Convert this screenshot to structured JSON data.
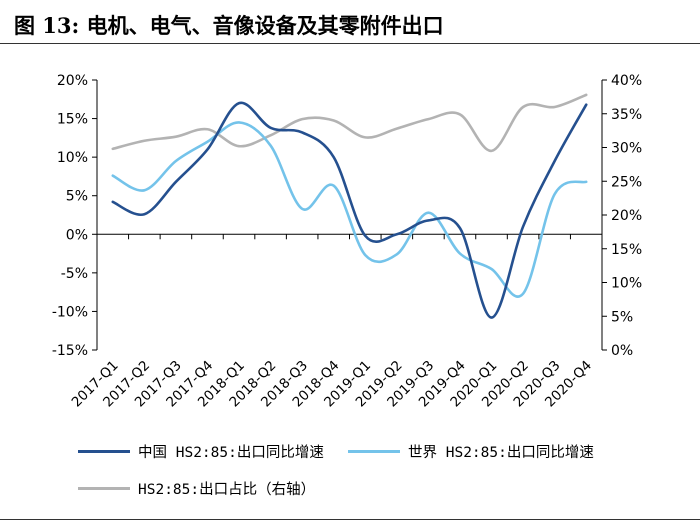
{
  "figure": {
    "title": "图 13:  电机、电气、音像设备及其零附件出口"
  },
  "colors": {
    "china": "#25508f",
    "world": "#74c3ea",
    "share": "#b3b3b3",
    "axis": "#000000"
  },
  "chart_data": {
    "type": "line",
    "title": "",
    "categories": [
      "2017-Q1",
      "2017-Q2",
      "2017-Q3",
      "2017-Q4",
      "2018-Q1",
      "2018-Q2",
      "2018-Q3",
      "2018-Q4",
      "2019-Q1",
      "2019-Q2",
      "2019-Q3",
      "2019-Q4",
      "2020-Q1",
      "2020-Q2",
      "2020-Q3",
      "2020-Q4"
    ],
    "y_left": {
      "ticks": [
        "20%",
        "15%",
        "10%",
        "5%",
        "0%",
        "-5%",
        "-10%",
        "-15%"
      ],
      "min": -15,
      "max": 20
    },
    "y_right": {
      "ticks": [
        "40%",
        "35%",
        "30%",
        "25%",
        "20%",
        "15%",
        "10%",
        "5%",
        "0%"
      ],
      "min": 0,
      "max": 40
    },
    "grid": false,
    "legend_position": "bottom",
    "series": [
      {
        "name": "中国 HS2:85:出口同比增速",
        "axis": "left",
        "color_key": "china",
        "values": [
          4.2,
          2.6,
          6.8,
          11.0,
          17.0,
          13.8,
          13.2,
          10.0,
          -0.2,
          0.0,
          1.8,
          0.8,
          -10.8,
          1.0,
          9.5,
          16.8
        ]
      },
      {
        "name": "世界 HS2:85:出口同比增速",
        "axis": "left",
        "color_key": "world",
        "values": [
          7.6,
          5.7,
          9.5,
          12.0,
          14.5,
          11.5,
          3.3,
          6.3,
          -2.7,
          -2.6,
          2.8,
          -2.5,
          -4.5,
          -7.7,
          5.2,
          6.8
        ]
      },
      {
        "name": "HS2:85:出口占比（右轴）",
        "axis": "right",
        "color_key": "share",
        "values": [
          29.8,
          31.0,
          31.6,
          32.7,
          30.2,
          31.8,
          34.2,
          34.0,
          31.5,
          32.8,
          34.2,
          34.9,
          29.5,
          36.0,
          36.0,
          37.8
        ]
      }
    ]
  }
}
